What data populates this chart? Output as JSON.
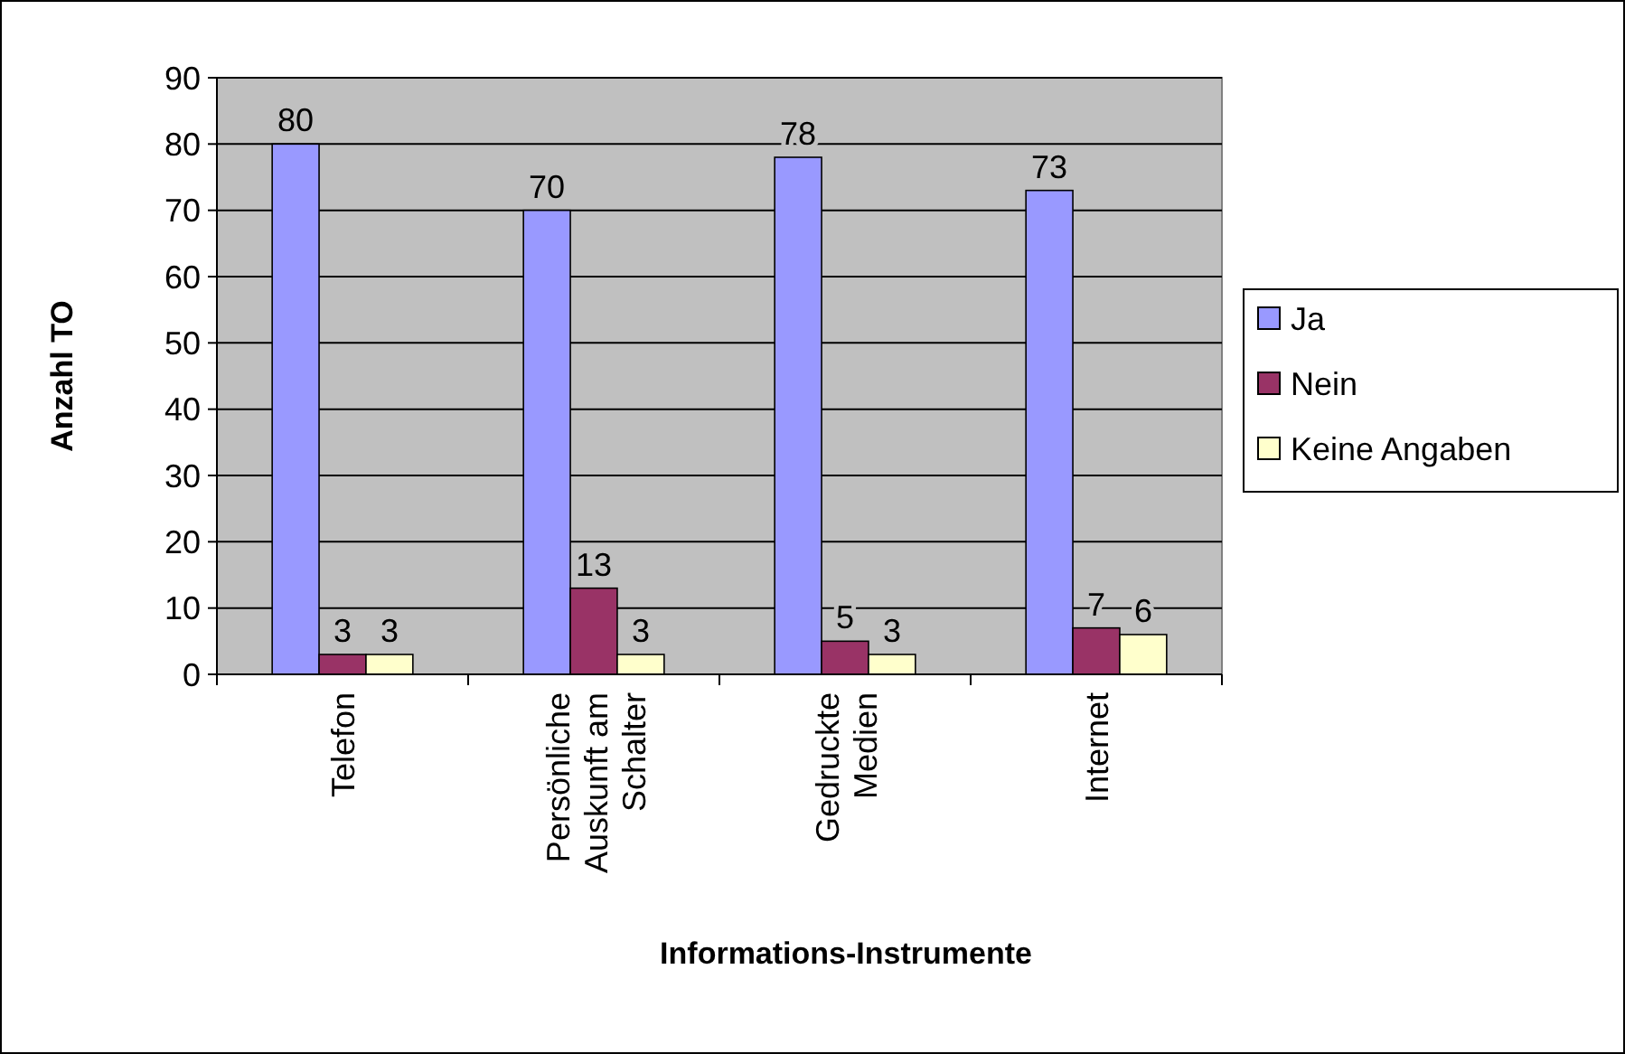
{
  "chart_data": {
    "type": "bar",
    "xlabel": "Informations-Instrumente",
    "ylabel": "Anzahl TO",
    "categories": [
      "Telefon",
      "Persönliche Auskunft am Schalter",
      "Gedruckte Medien",
      "Internet"
    ],
    "series": [
      {
        "name": "Ja",
        "color": "#9999ff",
        "values": [
          80,
          70,
          78,
          73
        ]
      },
      {
        "name": "Nein",
        "color": "#993366",
        "values": [
          3,
          13,
          5,
          7
        ]
      },
      {
        "name": "Keine Angaben",
        "color": "#ffffcc",
        "values": [
          3,
          3,
          3,
          6
        ]
      }
    ],
    "ylim": [
      0,
      90
    ],
    "yticks": [
      0,
      10,
      20,
      30,
      40,
      50,
      60,
      70,
      80,
      90
    ],
    "grid": "y",
    "legend": "right",
    "data_labels": true
  }
}
